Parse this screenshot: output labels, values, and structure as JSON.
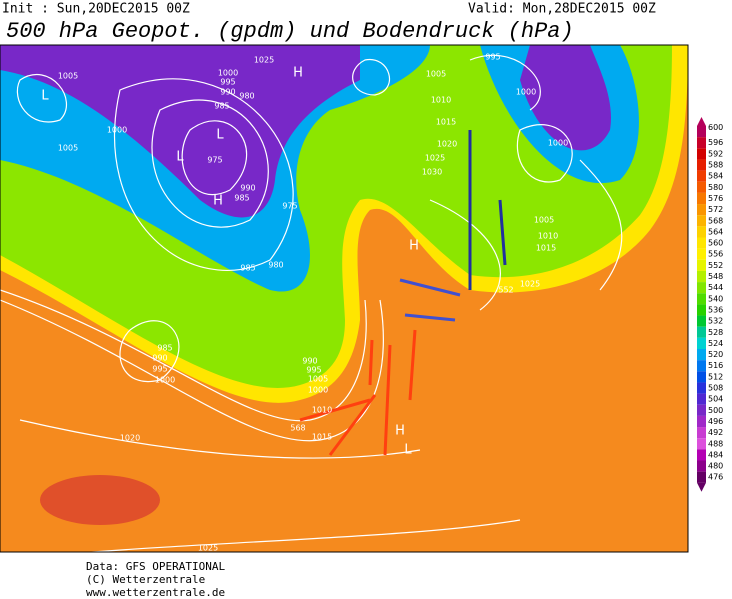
{
  "header": {
    "init": "Init : Sun,20DEC2015 00Z",
    "valid": "Valid: Mon,28DEC2015 00Z",
    "title": "500 hPa Geopot. (gpdm) und Bodendruck (hPa)"
  },
  "map_labels": [
    "1005",
    "995",
    "990",
    "985",
    "980",
    "1000",
    "1025",
    "1000",
    "1005",
    "975",
    "990",
    "985",
    "975",
    "985",
    "980",
    "1005",
    "995",
    "1000",
    "1010",
    "1015",
    "1020",
    "1025",
    "1030",
    "1000",
    "1005",
    "1010",
    "1015",
    "1025",
    "552",
    "985",
    "990",
    "995",
    "1000",
    "990",
    "995",
    "1005",
    "1000",
    "1010",
    "1015",
    "568",
    "1020",
    "1025",
    "L",
    "L",
    "L",
    "H",
    "H",
    "H",
    "H",
    "L"
  ],
  "colorbar": [
    {
      "label": "600",
      "color": "#b4005a"
    },
    {
      "label": "596",
      "color": "#c80028"
    },
    {
      "label": "592",
      "color": "#d20000"
    },
    {
      "label": "588",
      "color": "#e61e00"
    },
    {
      "label": "584",
      "color": "#f03c00"
    },
    {
      "label": "580",
      "color": "#f55a00"
    },
    {
      "label": "576",
      "color": "#f87800"
    },
    {
      "label": "572",
      "color": "#fa9600"
    },
    {
      "label": "568",
      "color": "#fcb400"
    },
    {
      "label": "564",
      "color": "#fdd200"
    },
    {
      "label": "560",
      "color": "#ffe600"
    },
    {
      "label": "556",
      "color": "#fff000"
    },
    {
      "label": "552",
      "color": "#e6f500"
    },
    {
      "label": "548",
      "color": "#b4f000"
    },
    {
      "label": "544",
      "color": "#82e600"
    },
    {
      "label": "540",
      "color": "#50dc00"
    },
    {
      "label": "536",
      "color": "#28d200"
    },
    {
      "label": "532",
      "color": "#00c832"
    },
    {
      "label": "528",
      "color": "#00c896"
    },
    {
      "label": "524",
      "color": "#00d2d2"
    },
    {
      "label": "520",
      "color": "#00aaf0"
    },
    {
      "label": "516",
      "color": "#0078f0"
    },
    {
      "label": "512",
      "color": "#0050e6"
    },
    {
      "label": "508",
      "color": "#2832dc"
    },
    {
      "label": "504",
      "color": "#5028d2"
    },
    {
      "label": "500",
      "color": "#7828c8"
    },
    {
      "label": "496",
      "color": "#a028c8"
    },
    {
      "label": "492",
      "color": "#c83cd2"
    },
    {
      "label": "488",
      "color": "#dc50dc"
    },
    {
      "label": "484",
      "color": "#b400b4"
    },
    {
      "label": "480",
      "color": "#8c008c"
    },
    {
      "label": "476",
      "color": "#640064"
    }
  ],
  "footer": {
    "source": "Data: GFS OPERATIONAL",
    "copyright": "(C) Wetterzentrale",
    "url": "www.wetterzentrale.de"
  }
}
